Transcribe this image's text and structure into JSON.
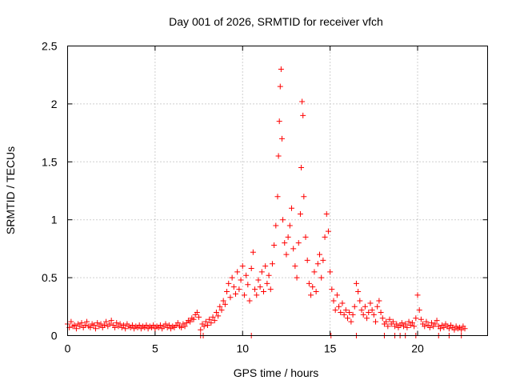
{
  "chart_data": {
    "type": "scatter",
    "title": "Day 001 of 2026, SRMTID for receiver vfch",
    "xlabel": "GPS time / hours",
    "ylabel": "SRMTID / TECUs",
    "xlim": [
      0,
      24
    ],
    "ylim": [
      0,
      2.5
    ],
    "xticks": [
      0,
      5,
      10,
      15,
      20
    ],
    "xtick_labels": [
      "0",
      "5",
      "10",
      "15",
      "20"
    ],
    "yticks": [
      0,
      0.5,
      1,
      1.5,
      2,
      2.5
    ],
    "ytick_labels": [
      "0",
      "0.5",
      "1",
      "1.5",
      "2",
      "2.5"
    ],
    "grid": true,
    "marker": "plus",
    "color": "#ff0000",
    "series": [
      {
        "name": "SRMTID",
        "points": [
          [
            0.0,
            0.1
          ],
          [
            0.1,
            0.07
          ],
          [
            0.2,
            0.12
          ],
          [
            0.3,
            0.08
          ],
          [
            0.4,
            0.09
          ],
          [
            0.5,
            0.06
          ],
          [
            0.6,
            0.1
          ],
          [
            0.7,
            0.08
          ],
          [
            0.8,
            0.11
          ],
          [
            0.9,
            0.07
          ],
          [
            1.0,
            0.09
          ],
          [
            1.1,
            0.12
          ],
          [
            1.2,
            0.08
          ],
          [
            1.3,
            0.07
          ],
          [
            1.4,
            0.1
          ],
          [
            1.5,
            0.09
          ],
          [
            1.6,
            0.06
          ],
          [
            1.7,
            0.11
          ],
          [
            1.8,
            0.08
          ],
          [
            1.9,
            0.1
          ],
          [
            2.0,
            0.07
          ],
          [
            2.1,
            0.09
          ],
          [
            2.2,
            0.12
          ],
          [
            2.3,
            0.08
          ],
          [
            2.4,
            0.1
          ],
          [
            2.5,
            0.13
          ],
          [
            2.6,
            0.09
          ],
          [
            2.7,
            0.07
          ],
          [
            2.8,
            0.11
          ],
          [
            2.9,
            0.08
          ],
          [
            3.0,
            0.1
          ],
          [
            3.1,
            0.07
          ],
          [
            3.2,
            0.09
          ],
          [
            3.3,
            0.06
          ],
          [
            3.4,
            0.1
          ],
          [
            3.5,
            0.08
          ],
          [
            3.6,
            0.07
          ],
          [
            3.7,
            0.09
          ],
          [
            3.8,
            0.06
          ],
          [
            3.9,
            0.08
          ],
          [
            4.0,
            0.07
          ],
          [
            4.1,
            0.09
          ],
          [
            4.2,
            0.06
          ],
          [
            4.3,
            0.08
          ],
          [
            4.4,
            0.07
          ],
          [
            4.5,
            0.09
          ],
          [
            4.6,
            0.06
          ],
          [
            4.7,
            0.08
          ],
          [
            4.8,
            0.07
          ],
          [
            4.9,
            0.09
          ],
          [
            5.0,
            0.06
          ],
          [
            5.1,
            0.08
          ],
          [
            5.2,
            0.07
          ],
          [
            5.3,
            0.09
          ],
          [
            5.4,
            0.06
          ],
          [
            5.5,
            0.08
          ],
          [
            5.6,
            0.1
          ],
          [
            5.7,
            0.07
          ],
          [
            5.8,
            0.09
          ],
          [
            5.9,
            0.06
          ],
          [
            6.0,
            0.08
          ],
          [
            6.1,
            0.07
          ],
          [
            6.2,
            0.09
          ],
          [
            6.3,
            0.11
          ],
          [
            6.4,
            0.08
          ],
          [
            6.5,
            0.07
          ],
          [
            6.6,
            0.1
          ],
          [
            6.7,
            0.08
          ],
          [
            6.8,
            0.11
          ],
          [
            6.9,
            0.13
          ],
          [
            7.0,
            0.12
          ],
          [
            7.1,
            0.15
          ],
          [
            7.2,
            0.14
          ],
          [
            7.3,
            0.18
          ],
          [
            7.4,
            0.2
          ],
          [
            7.5,
            0.16
          ],
          [
            7.6,
            0.05
          ],
          [
            7.7,
            0.1
          ],
          [
            7.8,
            0.08
          ],
          [
            7.9,
            0.12
          ],
          [
            8.0,
            0.09
          ],
          [
            8.1,
            0.14
          ],
          [
            8.2,
            0.11
          ],
          [
            8.3,
            0.16
          ],
          [
            8.4,
            0.13
          ],
          [
            8.5,
            0.2
          ],
          [
            8.6,
            0.17
          ],
          [
            8.7,
            0.25
          ],
          [
            8.8,
            0.22
          ],
          [
            8.9,
            0.3
          ],
          [
            9.0,
            0.27
          ],
          [
            9.1,
            0.38
          ],
          [
            9.2,
            0.45
          ],
          [
            9.3,
            0.33
          ],
          [
            9.4,
            0.5
          ],
          [
            9.5,
            0.42
          ],
          [
            9.6,
            0.36
          ],
          [
            9.7,
            0.55
          ],
          [
            9.8,
            0.4
          ],
          [
            9.9,
            0.48
          ],
          [
            10.0,
            0.6
          ],
          [
            10.1,
            0.35
          ],
          [
            10.2,
            0.52
          ],
          [
            10.3,
            0.44
          ],
          [
            10.4,
            0.3
          ],
          [
            10.5,
            0.58
          ],
          [
            10.6,
            0.72
          ],
          [
            10.7,
            0.4
          ],
          [
            10.8,
            0.35
          ],
          [
            10.9,
            0.48
          ],
          [
            11.0,
            0.42
          ],
          [
            11.1,
            0.55
          ],
          [
            11.2,
            0.38
          ],
          [
            11.3,
            0.6
          ],
          [
            11.4,
            0.45
          ],
          [
            11.5,
            0.52
          ],
          [
            11.6,
            0.4
          ],
          [
            11.7,
            0.62
          ],
          [
            11.8,
            0.78
          ],
          [
            11.9,
            0.95
          ],
          [
            12.0,
            1.2
          ],
          [
            12.05,
            1.55
          ],
          [
            12.1,
            1.85
          ],
          [
            12.15,
            2.15
          ],
          [
            12.2,
            2.3
          ],
          [
            12.25,
            1.7
          ],
          [
            12.3,
            1.0
          ],
          [
            12.4,
            0.8
          ],
          [
            12.5,
            0.7
          ],
          [
            12.6,
            0.85
          ],
          [
            12.7,
            0.95
          ],
          [
            12.8,
            1.1
          ],
          [
            12.9,
            0.75
          ],
          [
            13.0,
            0.6
          ],
          [
            13.1,
            0.5
          ],
          [
            13.2,
            0.8
          ],
          [
            13.3,
            1.05
          ],
          [
            13.35,
            1.45
          ],
          [
            13.4,
            2.02
          ],
          [
            13.45,
            1.9
          ],
          [
            13.5,
            1.2
          ],
          [
            13.6,
            0.85
          ],
          [
            13.7,
            0.65
          ],
          [
            13.8,
            0.45
          ],
          [
            13.9,
            0.35
          ],
          [
            14.0,
            0.42
          ],
          [
            14.1,
            0.55
          ],
          [
            14.2,
            0.38
          ],
          [
            14.3,
            0.62
          ],
          [
            14.4,
            0.7
          ],
          [
            14.5,
            0.5
          ],
          [
            14.6,
            0.65
          ],
          [
            14.7,
            0.85
          ],
          [
            14.8,
            1.05
          ],
          [
            14.9,
            0.9
          ],
          [
            15.0,
            0.55
          ],
          [
            15.1,
            0.4
          ],
          [
            15.2,
            0.3
          ],
          [
            15.3,
            0.22
          ],
          [
            15.4,
            0.35
          ],
          [
            15.5,
            0.25
          ],
          [
            15.6,
            0.2
          ],
          [
            15.7,
            0.28
          ],
          [
            15.8,
            0.18
          ],
          [
            15.9,
            0.22
          ],
          [
            16.0,
            0.15
          ],
          [
            16.1,
            0.2
          ],
          [
            16.2,
            0.12
          ],
          [
            16.3,
            0.18
          ],
          [
            16.4,
            0.25
          ],
          [
            16.5,
            0.45
          ],
          [
            16.6,
            0.38
          ],
          [
            16.7,
            0.3
          ],
          [
            16.8,
            0.22
          ],
          [
            16.9,
            0.18
          ],
          [
            17.0,
            0.25
          ],
          [
            17.1,
            0.15
          ],
          [
            17.2,
            0.2
          ],
          [
            17.3,
            0.28
          ],
          [
            17.4,
            0.22
          ],
          [
            17.5,
            0.18
          ],
          [
            17.6,
            0.12
          ],
          [
            17.7,
            0.25
          ],
          [
            17.8,
            0.3
          ],
          [
            17.9,
            0.2
          ],
          [
            18.0,
            0.15
          ],
          [
            18.1,
            0.1
          ],
          [
            18.2,
            0.12
          ],
          [
            18.3,
            0.08
          ],
          [
            18.4,
            0.14
          ],
          [
            18.5,
            0.1
          ],
          [
            18.6,
            0.12
          ],
          [
            18.7,
            0.08
          ],
          [
            18.8,
            0.1
          ],
          [
            18.9,
            0.07
          ],
          [
            19.0,
            0.09
          ],
          [
            19.1,
            0.11
          ],
          [
            19.2,
            0.08
          ],
          [
            19.3,
            0.1
          ],
          [
            19.4,
            0.07
          ],
          [
            19.5,
            0.12
          ],
          [
            19.6,
            0.09
          ],
          [
            19.7,
            0.11
          ],
          [
            19.8,
            0.08
          ],
          [
            19.9,
            0.15
          ],
          [
            20.0,
            0.35
          ],
          [
            20.1,
            0.22
          ],
          [
            20.2,
            0.14
          ],
          [
            20.3,
            0.1
          ],
          [
            20.4,
            0.08
          ],
          [
            20.5,
            0.12
          ],
          [
            20.6,
            0.09
          ],
          [
            20.7,
            0.07
          ],
          [
            20.8,
            0.11
          ],
          [
            20.9,
            0.08
          ],
          [
            21.0,
            0.1
          ],
          [
            21.1,
            0.13
          ],
          [
            21.2,
            0.08
          ],
          [
            21.3,
            0.06
          ],
          [
            21.4,
            0.09
          ],
          [
            21.5,
            0.07
          ],
          [
            21.6,
            0.1
          ],
          [
            21.7,
            0.08
          ],
          [
            21.8,
            0.06
          ],
          [
            21.9,
            0.09
          ],
          [
            22.0,
            0.07
          ],
          [
            22.1,
            0.05
          ],
          [
            22.2,
            0.08
          ],
          [
            22.3,
            0.06
          ],
          [
            22.4,
            0.07
          ],
          [
            22.5,
            0.05
          ],
          [
            22.6,
            0.08
          ],
          [
            22.7,
            0.06
          ],
          [
            7.6,
            0.0
          ],
          [
            7.75,
            0.0
          ],
          [
            10.5,
            0.0
          ],
          [
            15.05,
            0.0
          ],
          [
            16.5,
            0.0
          ],
          [
            18.1,
            0.0
          ],
          [
            18.7,
            0.0
          ],
          [
            19.0,
            0.0
          ],
          [
            19.3,
            0.0
          ],
          [
            19.9,
            0.0
          ],
          [
            21.2,
            0.0
          ],
          [
            21.8,
            0.0
          ],
          [
            22.5,
            0.0
          ]
        ]
      }
    ]
  }
}
